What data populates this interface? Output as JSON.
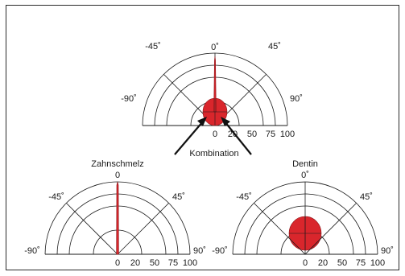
{
  "colors": {
    "lobe_fill": "#d9262c",
    "lobe_stroke": "#8a1418",
    "line": "#1a1a1a",
    "frame": "#2b2b2b",
    "background": "#ffffff"
  },
  "combination_label": "Kombination",
  "diagrams": [
    {
      "id": "combined",
      "title": "",
      "angle_labels": {
        "left90": "-90˚",
        "left45": "-45˚",
        "top": "0˚",
        "right45": "45˚",
        "right90": "90˚"
      },
      "radial_ticks": [
        "0",
        "20",
        "50",
        "75",
        "100"
      ],
      "lobes": [
        "narrow-spike",
        "round-bulb"
      ]
    },
    {
      "id": "zahnschmelz",
      "title": "Zahnschmelz",
      "angle_labels": {
        "left90": "-90˚",
        "left45": "-45˚",
        "top": "0",
        "right45": "45˚",
        "right90": "90˚"
      },
      "radial_ticks": [
        "0",
        "20",
        "50",
        "75",
        "100"
      ],
      "lobes": [
        "narrow-spike"
      ]
    },
    {
      "id": "dentin",
      "title": "Dentin",
      "angle_labels": {
        "left90": "-90˚",
        "left45": "-45˚",
        "top": "0˚",
        "right45": "45˚",
        "right90": "90˚"
      },
      "radial_ticks": [
        "0",
        "20",
        "50",
        "75",
        "100"
      ],
      "lobes": [
        "round-bulb"
      ]
    }
  ]
}
